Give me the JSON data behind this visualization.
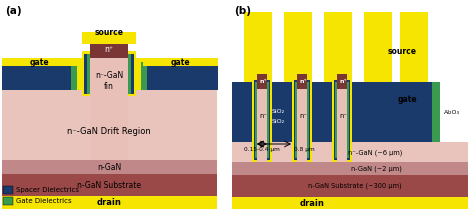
{
  "fig_width": 4.74,
  "fig_height": 2.11,
  "colors": {
    "yellow": "#F5E500",
    "dark_blue": "#1A3A6B",
    "blue": "#2B5EA7",
    "light_pink": "#EBC8BE",
    "medium_pink": "#D4A090",
    "dark_pink": "#C08878",
    "substrate_brown": "#9B5050",
    "source_brown": "#7A3535",
    "green": "#3A9A50",
    "white": "#FFFFFF",
    "black": "#000000",
    "sio2_blue": "#3A6AAA",
    "light_gray": "#E0E0E0",
    "fin_color": "#E0B8B0",
    "al2o3_green": "#3A9A50"
  },
  "legend": [
    {
      "label": "Spacer Dielectrics",
      "color": "#1A3A6B"
    },
    {
      "label": "Gate Dielectrics",
      "color": "#3A9A50"
    }
  ],
  "panel_a_label": "(a)",
  "panel_b_label": "(b)"
}
